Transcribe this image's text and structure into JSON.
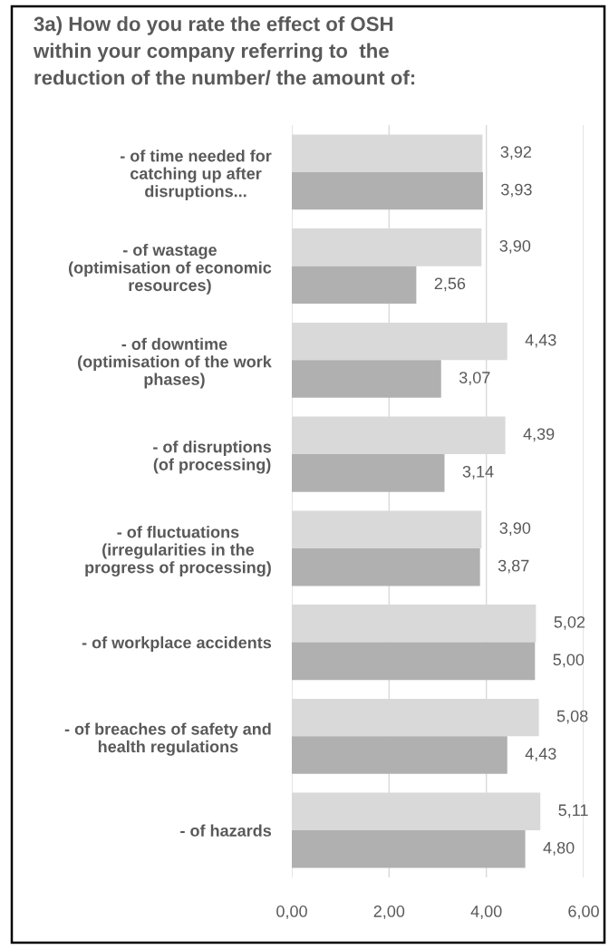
{
  "chart_data": {
    "type": "bar",
    "orientation": "horizontal",
    "title": "3a) How do you rate the effect of OSH\nwithin your company referring to  the\nreduction of the number/ the amount of:",
    "categories": [
      "- of time needed for\ncatching up after\ndisruptions...",
      "- of wastage\n(optimisation of economic\nresources)",
      "- of downtime\n(optimisation of the work\nphases)",
      "- of disruptions\n(of processing)",
      "- of fluctuations\n(irregularities in the\nprogress of processing)",
      "- of workplace accidents",
      "- of breaches of safety and\nhealth regulations",
      "- of hazards"
    ],
    "series": [
      {
        "color": "#d9d9d9",
        "values": [
          3.92,
          3.9,
          4.43,
          4.39,
          3.9,
          5.02,
          5.08,
          5.11
        ],
        "value_labels": [
          "3,92",
          "3,90",
          "4,43",
          "4,39",
          "3,90",
          "5,02",
          "5,08",
          "5,11"
        ]
      },
      {
        "color": "#b0b0b0",
        "values": [
          3.93,
          2.56,
          3.07,
          3.14,
          3.87,
          5.0,
          4.43,
          4.8
        ],
        "value_labels": [
          "3,93",
          "2,56",
          "3,07",
          "3,14",
          "3,87",
          "5,00",
          "4,43",
          "4,80"
        ]
      }
    ],
    "xlim": [
      0,
      6
    ],
    "xticks": [
      {
        "value": 0,
        "label": "0,00"
      },
      {
        "value": 2,
        "label": "2,00"
      },
      {
        "value": 4,
        "label": "4,00"
      },
      {
        "value": 6,
        "label": "6,00"
      }
    ],
    "grid": "x"
  }
}
